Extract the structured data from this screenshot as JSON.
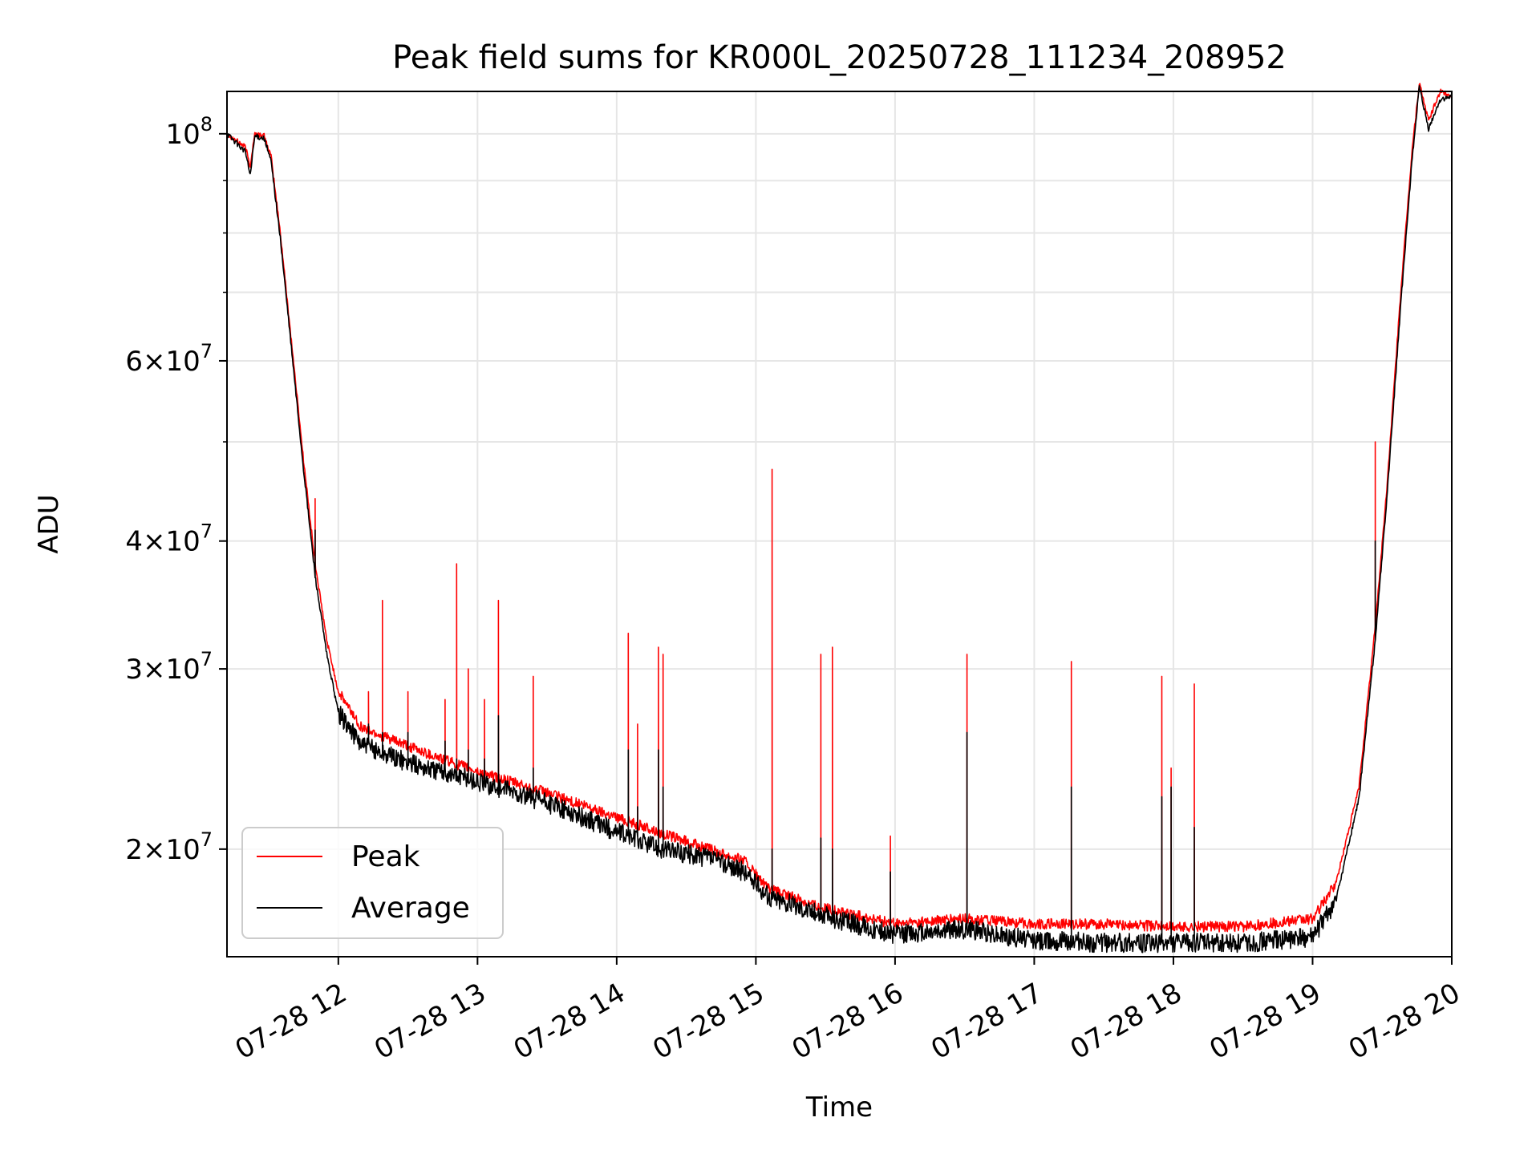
{
  "chart_data": {
    "type": "line",
    "title": "Peak field sums for KR000L_20250728_111234_208952",
    "xlabel": "Time",
    "ylabel": "ADU",
    "yscale": "log",
    "ylim": [
      15700000,
      110000000
    ],
    "xlim": [
      "07-28 11:12",
      "07-28 20:00"
    ],
    "x_ticks": [
      "07-28 12",
      "07-28 13",
      "07-28 14",
      "07-28 15",
      "07-28 16",
      "07-28 17",
      "07-28 18",
      "07-28 19",
      "07-28 20"
    ],
    "y_ticks": [
      {
        "value": 100000000,
        "base": "10",
        "exp": "8",
        "mantissa": ""
      },
      {
        "value": 60000000,
        "base": "10",
        "exp": "7",
        "mantissa": "6"
      },
      {
        "value": 40000000,
        "base": "10",
        "exp": "7",
        "mantissa": "4"
      },
      {
        "value": 30000000,
        "base": "10",
        "exp": "7",
        "mantissa": "3"
      },
      {
        "value": 20000000,
        "base": "10",
        "exp": "7",
        "mantissa": "2"
      }
    ],
    "grid": true,
    "legend_position": "lower-left",
    "series": [
      {
        "name": "Peak",
        "color": "#ff0000",
        "points": [
          [
            "07-28 11:12",
            100000000
          ],
          [
            "07-28 11:16",
            98500000
          ],
          [
            "07-28 11:20",
            97000000
          ],
          [
            "07-28 11:22",
            93000000
          ],
          [
            "07-28 11:24",
            100000000
          ],
          [
            "07-28 11:28",
            99500000
          ],
          [
            "07-28 11:31",
            95000000
          ],
          [
            "07-28 11:35",
            80000000
          ],
          [
            "07-28 11:40",
            62000000
          ],
          [
            "07-28 11:45",
            48000000
          ],
          [
            "07-28 11:50",
            38000000
          ],
          [
            "07-28 11:55",
            32000000
          ],
          [
            "07-28 12:00",
            28500000
          ],
          [
            "07-28 12:10",
            26300000
          ],
          [
            "07-28 12:30",
            25200000
          ],
          [
            "07-28 13:00",
            23800000
          ],
          [
            "07-28 13:30",
            22700000
          ],
          [
            "07-28 14:00",
            21500000
          ],
          [
            "07-28 14:20",
            20700000
          ],
          [
            "07-28 14:40",
            20000000
          ],
          [
            "07-28 14:55",
            19500000
          ],
          [
            "07-28 15:05",
            18300000
          ],
          [
            "07-28 15:30",
            17500000
          ],
          [
            "07-28 16:00",
            16900000
          ],
          [
            "07-28 16:30",
            17100000
          ],
          [
            "07-28 17:00",
            16900000
          ],
          [
            "07-28 17:30",
            16900000
          ],
          [
            "07-28 18:00",
            16800000
          ],
          [
            "07-28 18:30",
            16800000
          ],
          [
            "07-28 19:00",
            17100000
          ],
          [
            "07-28 19:10",
            18500000
          ],
          [
            "07-28 19:20",
            23000000
          ],
          [
            "07-28 19:27",
            33000000
          ],
          [
            "07-28 19:32",
            45000000
          ],
          [
            "07-28 19:38",
            70000000
          ],
          [
            "07-28 19:43",
            97000000
          ],
          [
            "07-28 19:46",
            112000000
          ],
          [
            "07-28 19:50",
            103000000
          ],
          [
            "07-28 19:55",
            110000000
          ],
          [
            "07-28 20:00",
            109000000
          ]
        ]
      },
      {
        "name": "Average",
        "color": "#000000",
        "points": [
          [
            "07-28 11:12",
            100000000
          ],
          [
            "07-28 11:16",
            98000000
          ],
          [
            "07-28 11:20",
            96000000
          ],
          [
            "07-28 11:22",
            91000000
          ],
          [
            "07-28 11:24",
            99500000
          ],
          [
            "07-28 11:28",
            99000000
          ],
          [
            "07-28 11:31",
            94000000
          ],
          [
            "07-28 11:35",
            79000000
          ],
          [
            "07-28 11:40",
            61000000
          ],
          [
            "07-28 11:45",
            47000000
          ],
          [
            "07-28 11:50",
            37000000
          ],
          [
            "07-28 11:55",
            31000000
          ],
          [
            "07-28 12:00",
            27200000
          ],
          [
            "07-28 12:10",
            25300000
          ],
          [
            "07-28 12:30",
            24300000
          ],
          [
            "07-28 13:00",
            23300000
          ],
          [
            "07-28 13:30",
            22200000
          ],
          [
            "07-28 14:00",
            20800000
          ],
          [
            "07-28 14:20",
            20000000
          ],
          [
            "07-28 14:40",
            19600000
          ],
          [
            "07-28 14:55",
            19000000
          ],
          [
            "07-28 15:05",
            18000000
          ],
          [
            "07-28 15:30",
            17200000
          ],
          [
            "07-28 16:00",
            16500000
          ],
          [
            "07-28 16:30",
            16700000
          ],
          [
            "07-28 17:00",
            16300000
          ],
          [
            "07-28 17:30",
            16200000
          ],
          [
            "07-28 18:00",
            16200000
          ],
          [
            "07-28 18:30",
            16200000
          ],
          [
            "07-28 19:00",
            16400000
          ],
          [
            "07-28 19:10",
            17800000
          ],
          [
            "07-28 19:20",
            22400000
          ],
          [
            "07-28 19:27",
            32000000
          ],
          [
            "07-28 19:32",
            44000000
          ],
          [
            "07-28 19:38",
            68000000
          ],
          [
            "07-28 19:43",
            95000000
          ],
          [
            "07-28 19:46",
            111000000
          ],
          [
            "07-28 19:50",
            101000000
          ],
          [
            "07-28 19:55",
            108000000
          ],
          [
            "07-28 20:00",
            108500000
          ]
        ]
      }
    ],
    "spikes": [
      {
        "x": "07-28 11:50",
        "peak": 44000000,
        "average": 41000000
      },
      {
        "x": "07-28 12:13",
        "peak": 28500000,
        "average": 26500000
      },
      {
        "x": "07-28 12:19",
        "peak": 35000000,
        "average": 26000000
      },
      {
        "x": "07-28 12:30",
        "peak": 28500000,
        "average": 26000000
      },
      {
        "x": "07-28 12:46",
        "peak": 28000000,
        "average": 25500000
      },
      {
        "x": "07-28 12:51",
        "peak": 38000000,
        "average": 24500000
      },
      {
        "x": "07-28 12:56",
        "peak": 30000000,
        "average": 25000000
      },
      {
        "x": "07-28 13:03",
        "peak": 28000000,
        "average": 24500000
      },
      {
        "x": "07-28 13:09",
        "peak": 35000000,
        "average": 27000000
      },
      {
        "x": "07-28 13:24",
        "peak": 29500000,
        "average": 24000000
      },
      {
        "x": "07-28 14:05",
        "peak": 32500000,
        "average": 25000000
      },
      {
        "x": "07-28 14:09",
        "peak": 26500000,
        "average": 22000000
      },
      {
        "x": "07-28 14:18",
        "peak": 31500000,
        "average": 25000000
      },
      {
        "x": "07-28 14:20",
        "peak": 31000000,
        "average": 23000000
      },
      {
        "x": "07-28 15:07",
        "peak": 47000000,
        "average": 20000000
      },
      {
        "x": "07-28 15:28",
        "peak": 31000000,
        "average": 20500000
      },
      {
        "x": "07-28 15:33",
        "peak": 31500000,
        "average": 20000000
      },
      {
        "x": "07-28 15:58",
        "peak": 20600000,
        "average": 19000000
      },
      {
        "x": "07-28 16:31",
        "peak": 31000000,
        "average": 26000000
      },
      {
        "x": "07-28 17:16",
        "peak": 30500000,
        "average": 23000000
      },
      {
        "x": "07-28 17:55",
        "peak": 29500000,
        "average": 22500000
      },
      {
        "x": "07-28 17:59",
        "peak": 24000000,
        "average": 23000000
      },
      {
        "x": "07-28 18:09",
        "peak": 29000000,
        "average": 21000000
      },
      {
        "x": "07-28 19:27",
        "peak": 50000000,
        "average": 40000000
      }
    ]
  }
}
